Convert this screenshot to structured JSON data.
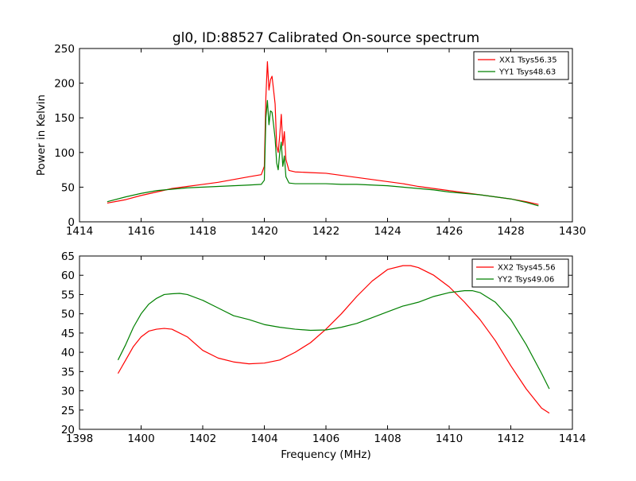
{
  "chart_data": [
    {
      "type": "line",
      "title": "gl0, ID:88527 Calibrated On-source spectrum",
      "xlabel": "",
      "ylabel": "Power in Kelvin",
      "xlim": [
        1414,
        1430
      ],
      "ylim": [
        0,
        250
      ],
      "xticks": [
        "1414",
        "1416",
        "1418",
        "1420",
        "1422",
        "1424",
        "1426",
        "1428",
        "1430"
      ],
      "yticks": [
        "0",
        "50",
        "100",
        "150",
        "200",
        "250"
      ],
      "grid": false,
      "legend": "top-right",
      "series": [
        {
          "name": "XX1 Tsys56.35",
          "color": "#ff0000",
          "x": [
            1414.9,
            1415.5,
            1416.0,
            1416.5,
            1417.0,
            1417.5,
            1418.0,
            1418.5,
            1419.0,
            1419.5,
            1419.9,
            1420.0,
            1420.05,
            1420.1,
            1420.15,
            1420.2,
            1420.25,
            1420.3,
            1420.35,
            1420.4,
            1420.45,
            1420.5,
            1420.55,
            1420.6,
            1420.65,
            1420.7,
            1420.8,
            1421.0,
            1421.5,
            1422.0,
            1422.5,
            1423.0,
            1423.5,
            1424.0,
            1424.5,
            1425.0,
            1425.5,
            1426.0,
            1426.5,
            1427.0,
            1427.5,
            1428.0,
            1428.5,
            1428.9
          ],
          "y": [
            27,
            32,
            38,
            43,
            48,
            51,
            54,
            57,
            61,
            65,
            68,
            80,
            180,
            231,
            190,
            205,
            210,
            190,
            170,
            110,
            100,
            125,
            155,
            110,
            130,
            90,
            74,
            72,
            71,
            70,
            67,
            64,
            61,
            58,
            55,
            51,
            48,
            45,
            42,
            39,
            36,
            33,
            29,
            25
          ]
        },
        {
          "name": "YY1 Tsys48.63",
          "color": "#008000",
          "x": [
            1414.9,
            1415.5,
            1416.0,
            1416.5,
            1417.0,
            1417.5,
            1418.0,
            1418.5,
            1419.0,
            1419.5,
            1419.9,
            1420.0,
            1420.05,
            1420.1,
            1420.15,
            1420.2,
            1420.25,
            1420.3,
            1420.35,
            1420.4,
            1420.45,
            1420.5,
            1420.55,
            1420.6,
            1420.65,
            1420.7,
            1420.8,
            1421.0,
            1421.5,
            1422.0,
            1422.5,
            1423.0,
            1423.5,
            1424.0,
            1424.5,
            1425.0,
            1425.5,
            1426.0,
            1426.5,
            1427.0,
            1427.5,
            1428.0,
            1428.5,
            1428.9
          ],
          "y": [
            29,
            36,
            41,
            45,
            47,
            49,
            50,
            51,
            52,
            53,
            54,
            60,
            150,
            175,
            140,
            160,
            158,
            140,
            120,
            85,
            75,
            100,
            115,
            80,
            95,
            65,
            56,
            55,
            55,
            55,
            54,
            54,
            53,
            52,
            50,
            48,
            46,
            43,
            41,
            39,
            36,
            33,
            28,
            23
          ]
        }
      ]
    },
    {
      "type": "line",
      "title": "",
      "xlabel": "Frequency (MHz)",
      "ylabel": "",
      "xlim": [
        1398,
        1414
      ],
      "ylim": [
        20,
        65
      ],
      "xticks": [
        "1398",
        "1400",
        "1402",
        "1404",
        "1406",
        "1408",
        "1410",
        "1412",
        "1414"
      ],
      "yticks": [
        "20",
        "25",
        "30",
        "35",
        "40",
        "45",
        "50",
        "55",
        "60",
        "65"
      ],
      "grid": false,
      "legend": "top-right",
      "series": [
        {
          "name": "XX2 Tsys45.56",
          "color": "#ff0000",
          "x": [
            1399.25,
            1399.5,
            1399.75,
            1400.0,
            1400.25,
            1400.5,
            1400.75,
            1401.0,
            1401.5,
            1402.0,
            1402.5,
            1403.0,
            1403.5,
            1404.0,
            1404.5,
            1405.0,
            1405.5,
            1406.0,
            1406.5,
            1407.0,
            1407.5,
            1408.0,
            1408.5,
            1408.75,
            1409.0,
            1409.5,
            1410.0,
            1410.5,
            1411.0,
            1411.5,
            1412.0,
            1412.5,
            1413.0,
            1413.25
          ],
          "y": [
            34.5,
            38,
            41.5,
            44,
            45.5,
            46,
            46.2,
            46,
            44,
            40.5,
            38.5,
            37.5,
            37,
            37.2,
            38,
            40,
            42.5,
            46,
            50,
            54.5,
            58.5,
            61.5,
            62.5,
            62.5,
            62,
            60,
            57,
            53,
            48.5,
            43,
            36.5,
            30.5,
            25.5,
            24.2
          ]
        },
        {
          "name": "YY2 Tsys49.06",
          "color": "#008000",
          "x": [
            1399.25,
            1399.5,
            1399.75,
            1400.0,
            1400.25,
            1400.5,
            1400.75,
            1401.0,
            1401.25,
            1401.5,
            1402.0,
            1402.5,
            1403.0,
            1403.5,
            1404.0,
            1404.5,
            1405.0,
            1405.5,
            1406.0,
            1406.5,
            1407.0,
            1407.5,
            1408.0,
            1408.5,
            1409.0,
            1409.5,
            1410.0,
            1410.5,
            1410.75,
            1411.0,
            1411.5,
            1412.0,
            1412.5,
            1413.0,
            1413.25
          ],
          "y": [
            38,
            42,
            46.5,
            50,
            52.5,
            54,
            55,
            55.2,
            55.3,
            55,
            53.5,
            51.5,
            49.5,
            48.5,
            47.2,
            46.5,
            46,
            45.7,
            45.8,
            46.5,
            47.5,
            49,
            50.5,
            52,
            53,
            54.5,
            55.5,
            56,
            56,
            55.5,
            53,
            48.5,
            42,
            34.5,
            30.5
          ]
        }
      ]
    }
  ]
}
